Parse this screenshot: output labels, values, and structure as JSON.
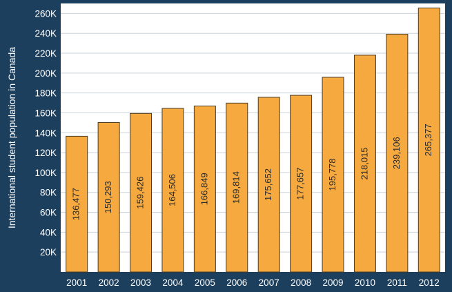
{
  "chart_data": {
    "type": "bar",
    "ylabel": "International student population in Canada",
    "xlabel": "",
    "categories": [
      "2001",
      "2002",
      "2003",
      "2004",
      "2005",
      "2006",
      "2007",
      "2008",
      "2009",
      "2010",
      "2011",
      "2012"
    ],
    "values": [
      136477,
      150293,
      159426,
      164506,
      166849,
      169814,
      175652,
      177657,
      195778,
      218015,
      239106,
      265377
    ],
    "data_labels": [
      "136,477",
      "150,293",
      "159,426",
      "164,506",
      "166,849",
      "169,814",
      "175,652",
      "177,657",
      "195,778",
      "218,015",
      "239,106",
      "265,377"
    ],
    "ylim": [
      0,
      270000
    ],
    "y_ticks": [
      20000,
      40000,
      60000,
      80000,
      100000,
      120000,
      140000,
      160000,
      180000,
      200000,
      220000,
      240000,
      260000
    ],
    "y_tick_labels": [
      "20K",
      "40K",
      "60K",
      "80K",
      "100K",
      "120K",
      "140K",
      "160K",
      "180K",
      "200K",
      "220K",
      "240K",
      "260K"
    ],
    "grid": true,
    "legend": "none",
    "colors": {
      "bar_fill": "#f5a93f",
      "bar_stroke": "#4a3a20",
      "frame": "#1d3f5e",
      "plot_bg": "#ffffff",
      "grid": "#c9d3dc"
    }
  }
}
